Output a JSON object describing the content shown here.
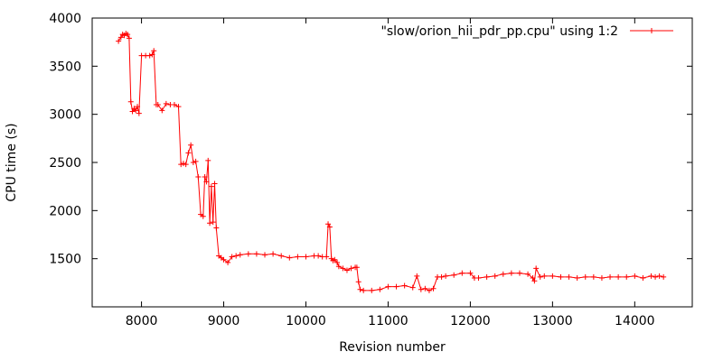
{
  "chart_data": {
    "type": "line",
    "xlabel": "Revision number",
    "ylabel": "CPU time (s)",
    "xlim": [
      7400,
      14700
    ],
    "ylim": [
      1000,
      4000
    ],
    "x_ticks": [
      8000,
      9000,
      10000,
      11000,
      12000,
      13000,
      14000
    ],
    "y_ticks": [
      1500,
      2000,
      2500,
      3000,
      3500,
      4000
    ],
    "grid": false,
    "legend_position": "top-right",
    "series": [
      {
        "name": "\"slow/orion_hii_pdr_pp.cpu\" using 1:2",
        "color": "#ff0000",
        "marker": "plus",
        "x": [
          7720,
          7750,
          7770,
          7790,
          7810,
          7830,
          7850,
          7870,
          7890,
          7910,
          7930,
          7950,
          7970,
          8000,
          8050,
          8100,
          8130,
          8150,
          8180,
          8200,
          8250,
          8300,
          8350,
          8400,
          8450,
          8480,
          8510,
          8540,
          8570,
          8600,
          8630,
          8660,
          8690,
          8720,
          8750,
          8770,
          8790,
          8810,
          8830,
          8850,
          8870,
          8890,
          8910,
          8940,
          8970,
          9000,
          9050,
          9100,
          9150,
          9200,
          9300,
          9400,
          9500,
          9600,
          9700,
          9800,
          9900,
          10000,
          10100,
          10150,
          10200,
          10250,
          10270,
          10290,
          10310,
          10330,
          10350,
          10380,
          10400,
          10450,
          10500,
          10550,
          10600,
          10620,
          10640,
          10660,
          10700,
          10800,
          10900,
          11000,
          11100,
          11200,
          11300,
          11350,
          11400,
          11450,
          11500,
          11550,
          11600,
          11650,
          11700,
          11800,
          11900,
          12000,
          12050,
          12100,
          12200,
          12300,
          12400,
          12500,
          12600,
          12700,
          12760,
          12780,
          12800,
          12850,
          12900,
          13000,
          13100,
          13200,
          13300,
          13400,
          13500,
          13600,
          13700,
          13800,
          13900,
          14000,
          14100,
          14200,
          14250,
          14300,
          14350
        ],
        "y": [
          3760,
          3800,
          3830,
          3820,
          3840,
          3830,
          3790,
          3130,
          3030,
          3060,
          3040,
          3080,
          3010,
          3610,
          3610,
          3610,
          3620,
          3660,
          3100,
          3100,
          3040,
          3110,
          3100,
          3100,
          3080,
          2480,
          2490,
          2480,
          2600,
          2680,
          2500,
          2510,
          2350,
          1960,
          1940,
          2350,
          2300,
          2520,
          1870,
          2250,
          1880,
          2280,
          1820,
          1530,
          1510,
          1490,
          1460,
          1520,
          1530,
          1540,
          1550,
          1550,
          1540,
          1550,
          1530,
          1510,
          1520,
          1520,
          1530,
          1530,
          1520,
          1520,
          1860,
          1830,
          1500,
          1480,
          1490,
          1460,
          1420,
          1400,
          1380,
          1400,
          1410,
          1410,
          1260,
          1180,
          1170,
          1170,
          1180,
          1210,
          1210,
          1220,
          1200,
          1320,
          1180,
          1190,
          1170,
          1190,
          1310,
          1310,
          1320,
          1330,
          1350,
          1350,
          1300,
          1300,
          1310,
          1320,
          1340,
          1350,
          1350,
          1340,
          1300,
          1270,
          1400,
          1310,
          1320,
          1320,
          1310,
          1310,
          1300,
          1310,
          1310,
          1300,
          1310,
          1310,
          1310,
          1320,
          1300,
          1320,
          1310,
          1320,
          1310
        ]
      }
    ]
  }
}
